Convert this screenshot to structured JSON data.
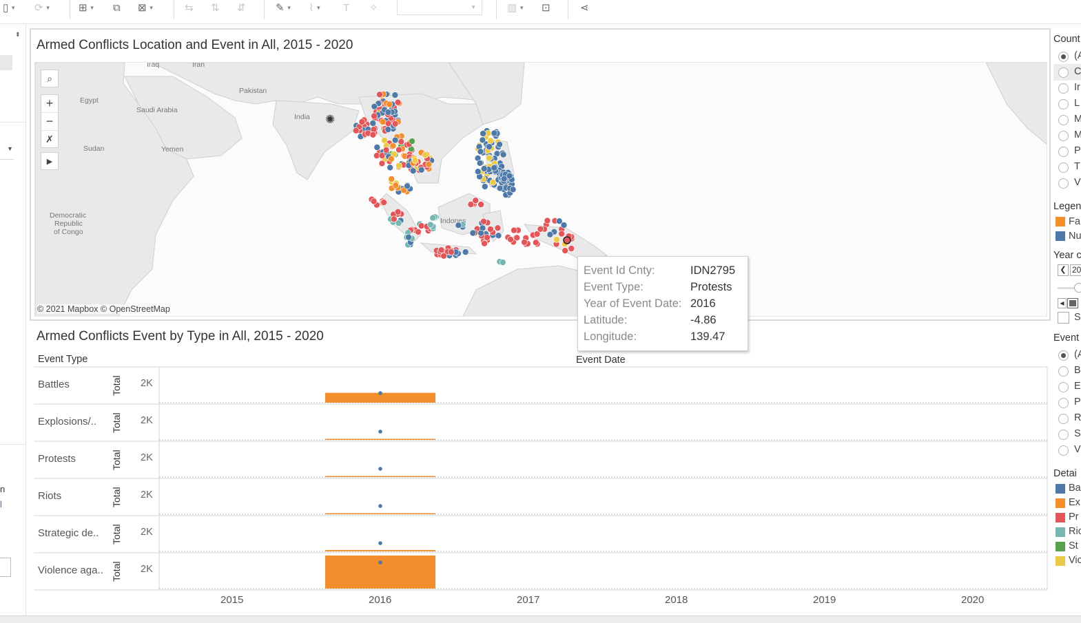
{
  "toolbar": {
    "icons": [
      "save-icon",
      "refresh-icon",
      "add-sheet-icon",
      "duplicate-icon",
      "clear-icon",
      "swap-icon",
      "sort-ascending-icon",
      "sort-descending-icon",
      "highlight-icon",
      "group-icon",
      "label-icon",
      "pin-icon",
      "show-me-icon",
      "presentation-icon",
      "share-icon"
    ],
    "fit_value": ""
  },
  "map_panel": {
    "title": "Armed Conflicts Location and Event in All, 2015 - 2020",
    "labels": [
      "Iraq",
      "Iran",
      "Pakistan",
      "Egypt",
      "Saudi Arabia",
      "India",
      "Sudan",
      "Yemen",
      "Democratic",
      "Republic",
      "of Congo",
      "Indones"
    ],
    "attribution": "© 2021 Mapbox © OpenStreetMap"
  },
  "tooltip": {
    "rows": [
      {
        "key": "Event Id Cnty:",
        "value": "IDN2795"
      },
      {
        "key": "Event Type:",
        "value": "Protests"
      },
      {
        "key": "Year of Event Date:",
        "value": "2016"
      },
      {
        "key": "Latitude:",
        "value": "-4.86"
      },
      {
        "key": "Longitude:",
        "value": "139.47"
      }
    ]
  },
  "bar_panel": {
    "title": "Armed Conflicts Event by Type in All, 2015 - 2020",
    "row_header": "Event Type",
    "col_header": "Event Date",
    "measure_label": "Total",
    "axis_tick": "2K",
    "x_ticks": [
      "2015",
      "2016",
      "2017",
      "2018",
      "2019",
      "2020"
    ]
  },
  "chart_data": {
    "type": "bar",
    "title": "Armed Conflicts Event by Type in All, 2015 - 2020",
    "xlabel": "Event Date",
    "ylabel": "Total",
    "categories": [
      "2015",
      "2016",
      "2017",
      "2018",
      "2019",
      "2020"
    ],
    "series": [
      {
        "name": "Battles",
        "values": [
          0,
          600,
          0,
          0,
          0,
          0
        ]
      },
      {
        "name": "Explosions/..",
        "values": [
          0,
          60,
          0,
          0,
          0,
          0
        ]
      },
      {
        "name": "Protests",
        "values": [
          0,
          40,
          0,
          0,
          0,
          0
        ]
      },
      {
        "name": "Riots",
        "values": [
          0,
          60,
          0,
          0,
          0,
          0
        ]
      },
      {
        "name": "Strategic de..",
        "values": [
          0,
          80,
          0,
          0,
          0,
          0
        ]
      },
      {
        "name": "Violence aga..",
        "values": [
          0,
          2000,
          0,
          0,
          0,
          0
        ]
      }
    ],
    "ylim": [
      0,
      2000
    ]
  },
  "right_panel": {
    "country_title": "Count",
    "country_options": [
      "(A",
      "C",
      "Ir",
      "L",
      "M",
      "M",
      "P",
      "T",
      "V"
    ],
    "legend_title": "Legen",
    "legend_items": [
      {
        "label": "Fa",
        "color": "#f28e2b"
      },
      {
        "label": "Nu",
        "color": "#4e79a7"
      }
    ],
    "year_title": "Year c",
    "year_value": "20",
    "year_check_label": "S",
    "event_title": "Event",
    "event_options": [
      "(A",
      "B",
      "E",
      "P",
      "R",
      "S",
      "V"
    ],
    "detail_title": "Detai",
    "detail_items": [
      {
        "label": "Ba",
        "color": "#4e79a7"
      },
      {
        "label": "Ex",
        "color": "#f28e2b"
      },
      {
        "label": "Pr",
        "color": "#e15759"
      },
      {
        "label": "Ric",
        "color": "#76b7b2"
      },
      {
        "label": "St",
        "color": "#59a14f"
      },
      {
        "label": "Vic",
        "color": "#edc948"
      }
    ]
  },
  "left_panel": {
    "text_a": "n",
    "text_b": "l"
  }
}
